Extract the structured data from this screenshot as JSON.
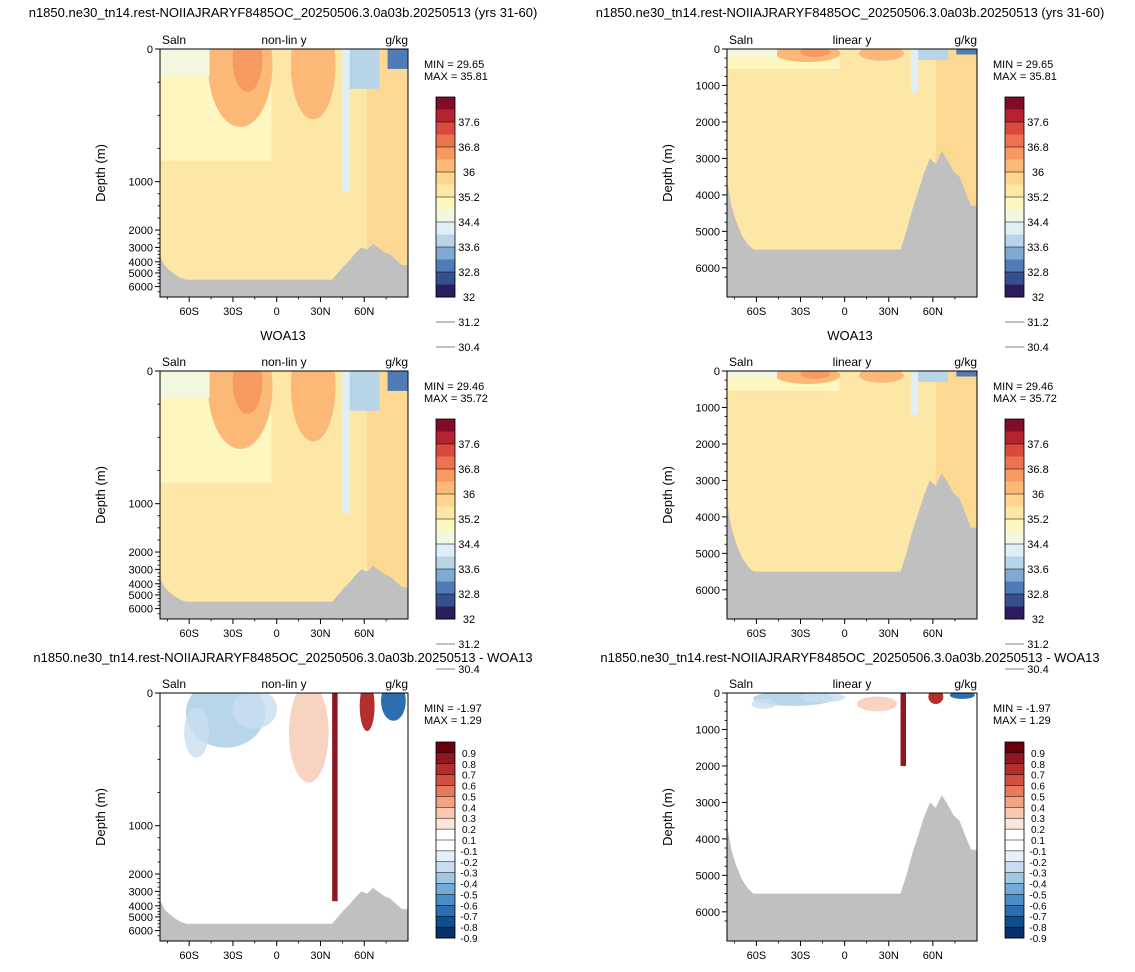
{
  "page": {
    "title_top": "n1850.ne30_tn14.rest-NOIIAJRARYF8485OC_20250506.3.0a03b.20250513 (yrs 31-60)",
    "title_mid": "WOA13",
    "title_bottom": "n1850.ne30_tn14.rest-NOIIAJRARYF8485OC_20250506.3.0a03b.20250513 - WOA13"
  },
  "colors": {
    "land": "#c0c0c0",
    "salinity_scale": [
      "#2b1d5e",
      "#36508f",
      "#4f7cb6",
      "#80a9d1",
      "#b7d4e9",
      "#e0eef6",
      "#f2f8e0",
      "#fdf6bf",
      "#fde7a6",
      "#fdd58e",
      "#fcb877",
      "#f69a61",
      "#ec7250",
      "#d94a3d",
      "#b62230",
      "#800c28"
    ],
    "diff_scale": [
      "#08306b",
      "#0d4f91",
      "#2b6fb0",
      "#4b8dc6",
      "#74aad6",
      "#a1c7e3",
      "#c8def0",
      "#e5f0f8",
      "#ffffff",
      "#ffffff",
      "#fbe6dc",
      "#f8c8b1",
      "#f3a384",
      "#e77a5b",
      "#d25041",
      "#b42e2e",
      "#8e1822",
      "#67000d"
    ]
  },
  "chart_data": [
    {
      "type": "heatmap",
      "panel": "model-nonlinear",
      "variable": "Saln",
      "yscale_label": "non-lin y",
      "units": "g/kg",
      "ylabel": "Depth (m)",
      "yticks": [
        0,
        1000,
        2000,
        3000,
        4000,
        5000,
        6000
      ],
      "yticklabels": [
        "0",
        "1000",
        "2000",
        "3000",
        "4000",
        "5000",
        "6000"
      ],
      "xticks": [
        -60,
        -30,
        0,
        30,
        60
      ],
      "xticklabels": [
        "60S",
        "30S",
        "0",
        "30N",
        "60N"
      ],
      "min_label": "MIN =  29.65",
      "max_label": "MAX =  35.81",
      "colorbar_labels": [
        "37.6",
        "36.8",
        "36",
        "35.2",
        "34.4",
        "33.6",
        "32.8",
        "32",
        "31.2",
        "30.4"
      ]
    },
    {
      "type": "heatmap",
      "panel": "model-linear",
      "variable": "Saln",
      "yscale_label": "linear y",
      "units": "g/kg",
      "ylabel": "Depth (m)",
      "yticks": [
        0,
        1000,
        2000,
        3000,
        4000,
        5000,
        6000
      ],
      "yticklabels": [
        "0",
        "1000",
        "2000",
        "3000",
        "4000",
        "5000",
        "6000"
      ],
      "xticks": [
        -60,
        -30,
        0,
        30,
        60
      ],
      "xticklabels": [
        "60S",
        "30S",
        "0",
        "30N",
        "60N"
      ],
      "min_label": "MIN =  29.65",
      "max_label": "MAX =  35.81",
      "colorbar_labels": [
        "37.6",
        "36.8",
        "36",
        "35.2",
        "34.4",
        "33.6",
        "32.8",
        "32",
        "31.2",
        "30.4"
      ]
    },
    {
      "type": "heatmap",
      "panel": "obs-nonlinear",
      "variable": "Saln",
      "yscale_label": "non-lin y",
      "units": "g/kg",
      "ylabel": "Depth (m)",
      "yticks": [
        0,
        1000,
        2000,
        3000,
        4000,
        5000,
        6000
      ],
      "yticklabels": [
        "0",
        "1000",
        "2000",
        "3000",
        "4000",
        "5000",
        "6000"
      ],
      "xticks": [
        -60,
        -30,
        0,
        30,
        60
      ],
      "xticklabels": [
        "60S",
        "30S",
        "0",
        "30N",
        "60N"
      ],
      "min_label": "MIN =  29.46",
      "max_label": "MAX =  35.72",
      "colorbar_labels": [
        "37.6",
        "36.8",
        "36",
        "35.2",
        "34.4",
        "33.6",
        "32.8",
        "32",
        "31.2",
        "30.4"
      ]
    },
    {
      "type": "heatmap",
      "panel": "obs-linear",
      "variable": "Saln",
      "yscale_label": "linear y",
      "units": "g/kg",
      "ylabel": "Depth (m)",
      "yticks": [
        0,
        1000,
        2000,
        3000,
        4000,
        5000,
        6000
      ],
      "yticklabels": [
        "0",
        "1000",
        "2000",
        "3000",
        "4000",
        "5000",
        "6000"
      ],
      "xticks": [
        -60,
        -30,
        0,
        30,
        60
      ],
      "xticklabels": [
        "60S",
        "30S",
        "0",
        "30N",
        "60N"
      ],
      "min_label": "MIN =  29.46",
      "max_label": "MAX =  35.72",
      "colorbar_labels": [
        "37.6",
        "36.8",
        "36",
        "35.2",
        "34.4",
        "33.6",
        "32.8",
        "32",
        "31.2",
        "30.4"
      ]
    },
    {
      "type": "heatmap",
      "panel": "diff-nonlinear",
      "variable": "Saln",
      "yscale_label": "non-lin y",
      "units": "g/kg",
      "ylabel": "Depth (m)",
      "yticks": [
        0,
        1000,
        2000,
        3000,
        4000,
        5000,
        6000
      ],
      "yticklabels": [
        "0",
        "1000",
        "2000",
        "3000",
        "4000",
        "5000",
        "6000"
      ],
      "xticks": [
        -60,
        -30,
        0,
        30,
        60
      ],
      "xticklabels": [
        "60S",
        "30S",
        "0",
        "30N",
        "60N"
      ],
      "min_label": "MIN = -1.97",
      "max_label": "MAX =  1.29",
      "colorbar_labels": [
        "0.9",
        "0.8",
        "0.7",
        "0.6",
        "0.5",
        "0.4",
        "0.3",
        "0.2",
        "0.1",
        "-0.1",
        "-0.2",
        "-0.3",
        "-0.4",
        "-0.5",
        "-0.6",
        "-0.7",
        "-0.8",
        "-0.9"
      ]
    },
    {
      "type": "heatmap",
      "panel": "diff-linear",
      "variable": "Saln",
      "yscale_label": "linear y",
      "units": "g/kg",
      "ylabel": "Depth (m)",
      "yticks": [
        0,
        1000,
        2000,
        3000,
        4000,
        5000,
        6000
      ],
      "yticklabels": [
        "0",
        "1000",
        "2000",
        "3000",
        "4000",
        "5000",
        "6000"
      ],
      "xticks": [
        -60,
        -30,
        0,
        30,
        60
      ],
      "xticklabels": [
        "60S",
        "30S",
        "0",
        "30N",
        "60N"
      ],
      "min_label": "MIN = -1.97",
      "max_label": "MAX =  1.29",
      "colorbar_labels": [
        "0.9",
        "0.8",
        "0.7",
        "0.6",
        "0.5",
        "0.4",
        "0.3",
        "0.2",
        "0.1",
        "-0.1",
        "-0.2",
        "-0.3",
        "-0.4",
        "-0.5",
        "-0.6",
        "-0.7",
        "-0.8",
        "-0.9"
      ]
    }
  ]
}
